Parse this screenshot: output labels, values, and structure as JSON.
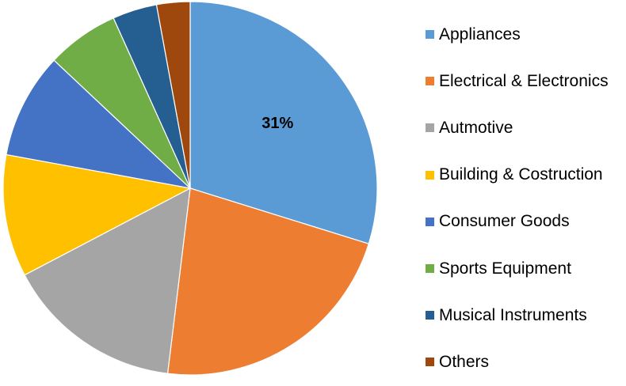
{
  "chart_data": {
    "type": "pie",
    "title": "",
    "slices": [
      {
        "label": "Appliances",
        "value": 31,
        "color": "#5B9BD5",
        "data_label": "31%"
      },
      {
        "label": "Electrical & Electronics",
        "value": 23,
        "color": "#ED7D31"
      },
      {
        "label": "Autmotive",
        "value": 16,
        "color": "#A5A5A5"
      },
      {
        "label": "Building & Costruction",
        "value": 11,
        "color": "#FFC000"
      },
      {
        "label": "Consumer Goods",
        "value": 9.5,
        "color": "#4472C4"
      },
      {
        "label": "Sports Equipment",
        "value": 6.5,
        "color": "#70AD47"
      },
      {
        "label": "Musical Instruments",
        "value": 4,
        "color": "#255E91"
      },
      {
        "label": "Others",
        "value": 3,
        "color": "#9E480E"
      }
    ],
    "start_angle": "12 o'clock",
    "direction": "clockwise",
    "legend_position": "right"
  }
}
